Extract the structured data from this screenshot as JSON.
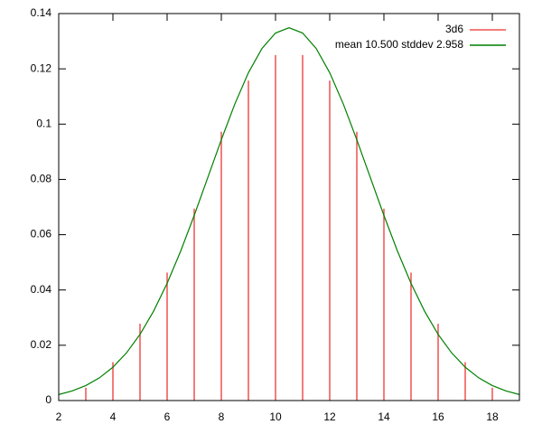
{
  "chart_data": {
    "type": "line",
    "xlim": [
      2,
      19
    ],
    "xticks": [
      2,
      4,
      6,
      8,
      10,
      12,
      14,
      16,
      18
    ],
    "ylim": [
      0,
      0.14
    ],
    "yticks": [
      0,
      0.02,
      0.04,
      0.06,
      0.08,
      0.1,
      0.12,
      0.14
    ],
    "legend": "top-right",
    "series": [
      {
        "name": "3d6",
        "color": "#f05050",
        "style": "impulses",
        "x": [
          3,
          4,
          5,
          6,
          7,
          8,
          9,
          10,
          11,
          12,
          13,
          14,
          15,
          16,
          17,
          18
        ],
        "values": [
          0.00463,
          0.01389,
          0.02778,
          0.0463,
          0.06944,
          0.09722,
          0.11574,
          0.125,
          0.125,
          0.11574,
          0.09722,
          0.06944,
          0.0463,
          0.02778,
          0.01389,
          0.00463
        ]
      },
      {
        "name": "mean 10.500 stddev 2.958",
        "color": "#008000",
        "style": "lines",
        "x": [
          2,
          2.5,
          3,
          3.5,
          4,
          4.5,
          5,
          5.5,
          6,
          6.5,
          7,
          7.5,
          8,
          8.5,
          9,
          9.5,
          10,
          10.5,
          11,
          11.5,
          12,
          12.5,
          13,
          13.5,
          14,
          14.5,
          15,
          15.5,
          16,
          16.5,
          17,
          17.5,
          18,
          18.5,
          19
        ],
        "values": [
          0.00217,
          0.00348,
          0.00542,
          0.0082,
          0.01206,
          0.01724,
          0.02394,
          0.03232,
          0.0424,
          0.05406,
          0.06697,
          0.08064,
          0.09436,
          0.10731,
          0.1186,
          0.12738,
          0.13296,
          0.13487,
          0.13296,
          0.12738,
          0.1186,
          0.10731,
          0.09436,
          0.08064,
          0.06697,
          0.05406,
          0.0424,
          0.03232,
          0.02394,
          0.01724,
          0.01206,
          0.0082,
          0.00542,
          0.00348,
          0.00217
        ]
      }
    ]
  }
}
